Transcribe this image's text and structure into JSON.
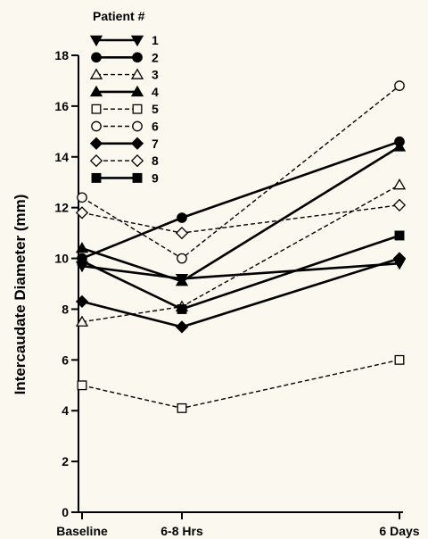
{
  "chart_data": {
    "type": "line",
    "title": "",
    "ylabel": "Intercaudate Diameter (mm)",
    "xlabel": "",
    "categories": [
      "Baseline",
      "6-8 Hrs",
      "6 Days"
    ],
    "x_positions_days": [
      0,
      0.3,
      6
    ],
    "ylim": [
      0,
      18
    ],
    "yticks": [
      0,
      2,
      4,
      6,
      8,
      10,
      12,
      14,
      16,
      18
    ],
    "legend_title": "Patient #",
    "legend_position": "top-left",
    "series": [
      {
        "name": "1",
        "values": [
          9.7,
          9.2,
          9.8
        ],
        "line": "solid",
        "marker": "triangle-down",
        "fill": "filled"
      },
      {
        "name": "2",
        "values": [
          10.0,
          11.6,
          14.6
        ],
        "line": "solid",
        "marker": "circle",
        "fill": "filled"
      },
      {
        "name": "3",
        "values": [
          7.5,
          8.1,
          12.9
        ],
        "line": "dashed",
        "marker": "triangle-up",
        "fill": "open"
      },
      {
        "name": "4",
        "values": [
          10.4,
          9.1,
          14.4
        ],
        "line": "solid",
        "marker": "triangle-up",
        "fill": "filled"
      },
      {
        "name": "5",
        "values": [
          5.0,
          4.1,
          6.0
        ],
        "line": "dashed",
        "marker": "square",
        "fill": "open"
      },
      {
        "name": "6",
        "values": [
          12.4,
          10.0,
          16.8
        ],
        "line": "dashed",
        "marker": "circle",
        "fill": "open"
      },
      {
        "name": "7",
        "values": [
          8.3,
          7.3,
          10.0
        ],
        "line": "solid",
        "marker": "diamond",
        "fill": "filled"
      },
      {
        "name": "8",
        "values": [
          11.8,
          11.0,
          12.1
        ],
        "line": "dashed",
        "marker": "diamond",
        "fill": "open"
      },
      {
        "name": "9",
        "values": [
          9.9,
          8.0,
          10.9
        ],
        "line": "solid",
        "marker": "square",
        "fill": "filled"
      }
    ],
    "colors": {
      "ink": "#000000",
      "background": "#fbf8ef"
    }
  }
}
